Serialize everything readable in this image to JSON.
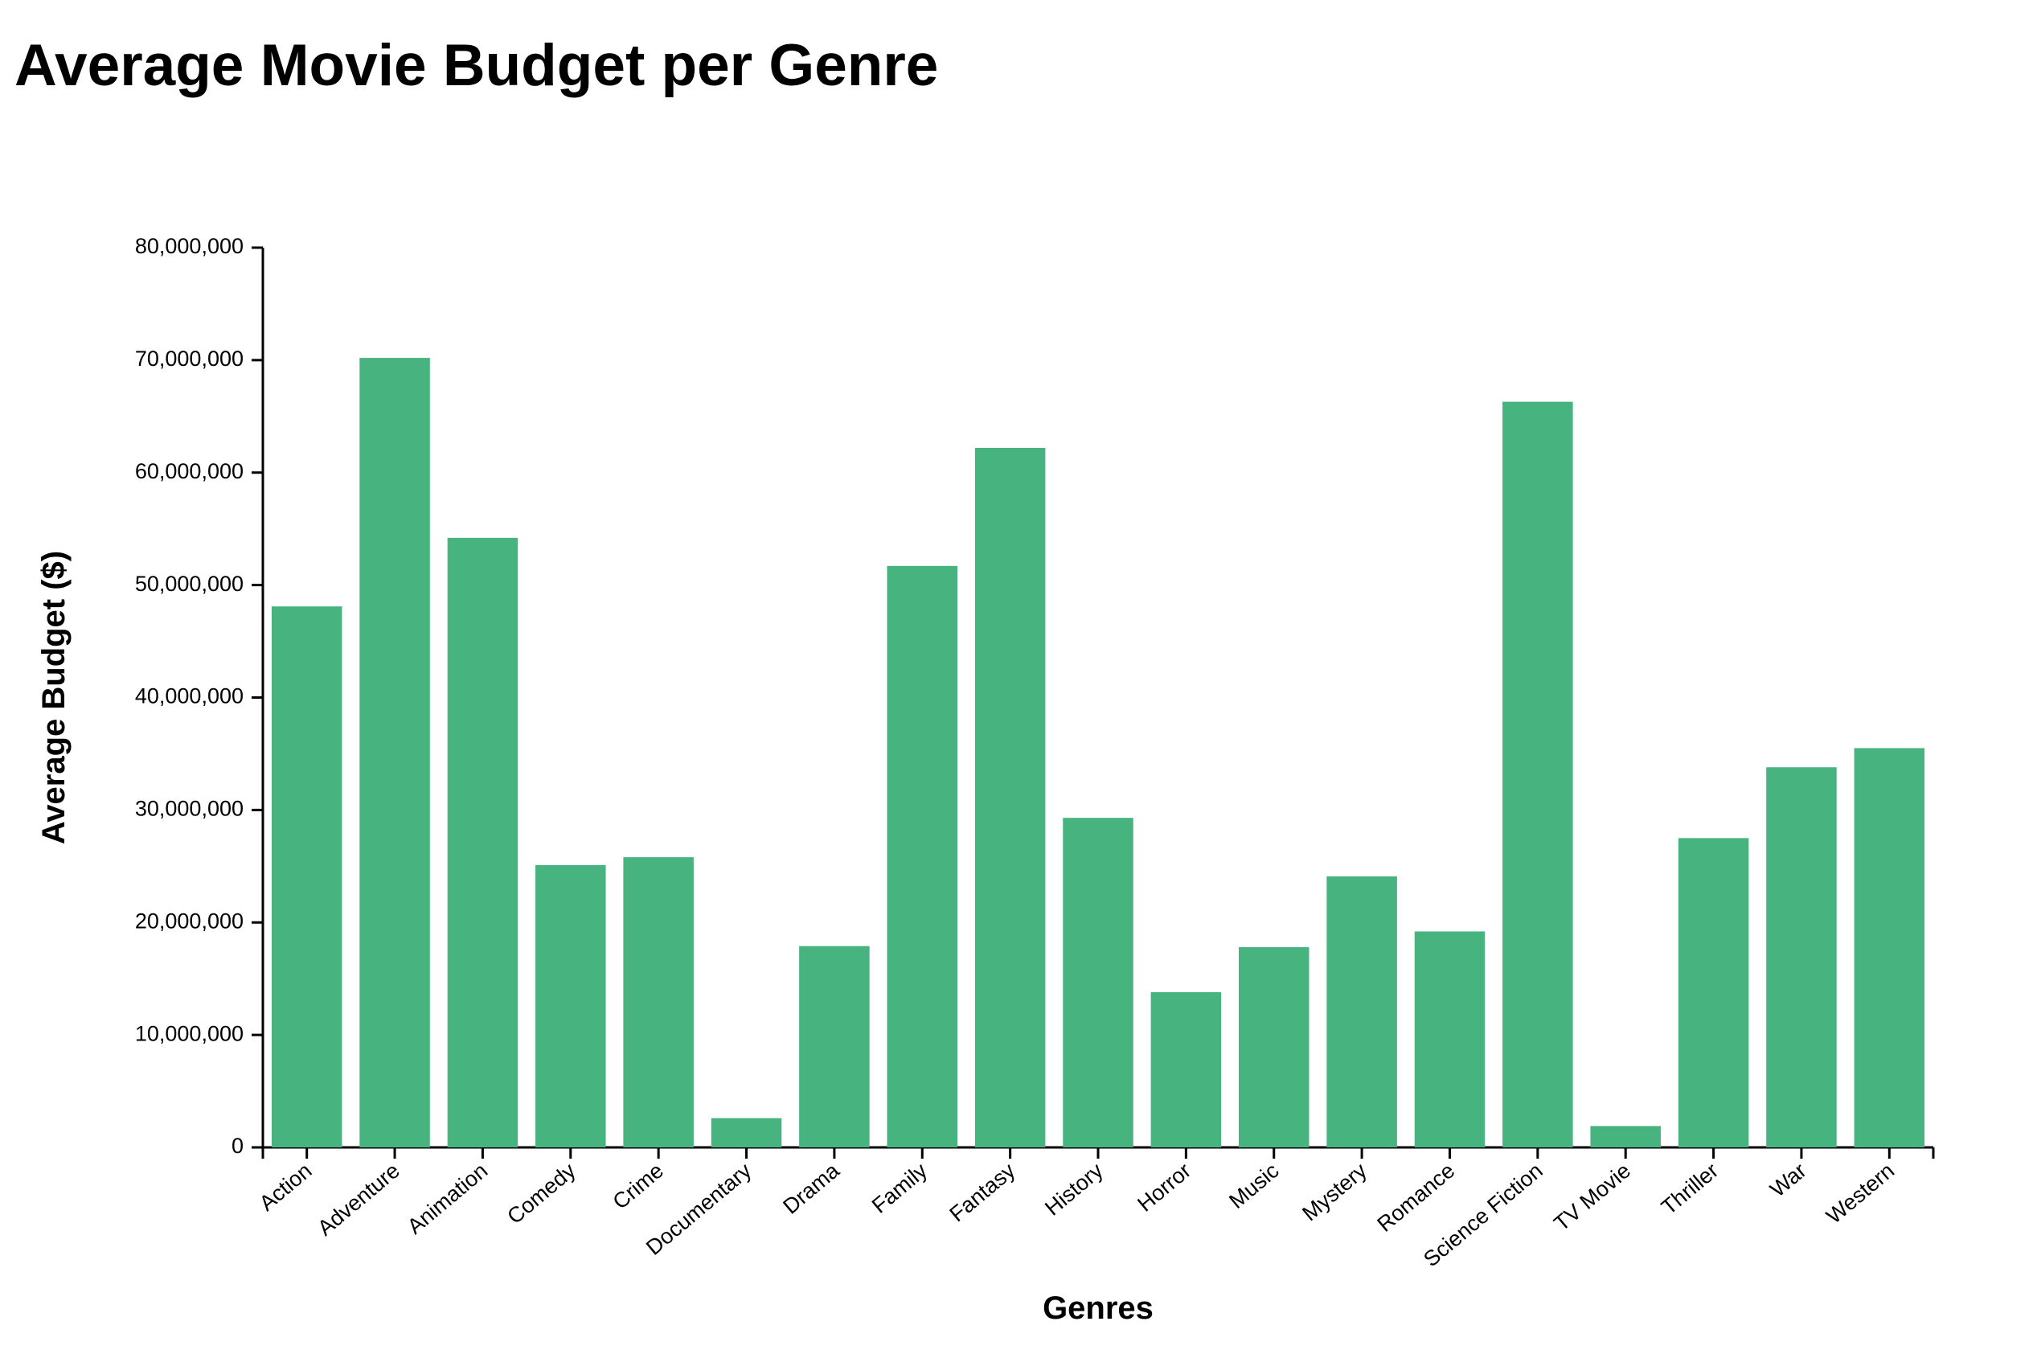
{
  "title": "Average Movie Budget per Genre",
  "chart_data": {
    "type": "bar",
    "title": "Average Movie Budget per Genre",
    "xlabel": "Genres",
    "ylabel": "Average Budget ($)",
    "categories": [
      "Action",
      "Adventure",
      "Animation",
      "Comedy",
      "Crime",
      "Documentary",
      "Drama",
      "Family",
      "Fantasy",
      "History",
      "Horror",
      "Music",
      "Mystery",
      "Romance",
      "Science Fiction",
      "TV Movie",
      "Thriller",
      "War",
      "Western"
    ],
    "values": [
      48100000,
      70200000,
      54200000,
      25100000,
      25800000,
      2600000,
      17900000,
      51700000,
      62200000,
      29300000,
      13800000,
      17800000,
      24100000,
      19200000,
      66300000,
      1900000,
      27500000,
      33800000,
      35500000
    ],
    "ylim": [
      0,
      80000000
    ],
    "yticks": [
      0,
      10000000,
      20000000,
      30000000,
      40000000,
      50000000,
      60000000,
      70000000,
      80000000
    ],
    "ytick_labels": [
      "0",
      "10,000,000",
      "20,000,000",
      "30,000,000",
      "40,000,000",
      "50,000,000",
      "60,000,000",
      "70,000,000",
      "80,000,000"
    ],
    "bar_color": "#47b37f",
    "grid": false,
    "legend": "none"
  }
}
